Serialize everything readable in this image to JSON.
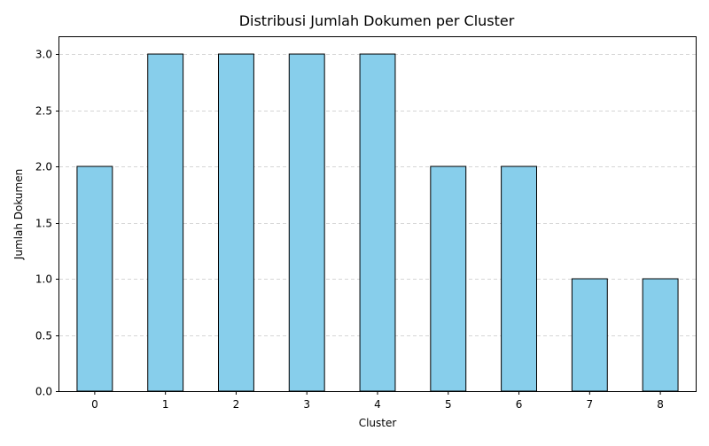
{
  "chart_data": {
    "type": "bar",
    "title": "Distribusi Jumlah Dokumen per Cluster",
    "xlabel": "Cluster",
    "ylabel": "Jumlah Dokumen",
    "categories": [
      "0",
      "1",
      "2",
      "3",
      "4",
      "5",
      "6",
      "7",
      "8"
    ],
    "values": [
      2,
      3,
      3,
      3,
      3,
      2,
      2,
      1,
      1
    ],
    "ylim": [
      0,
      3.15
    ],
    "yticks": [
      "0.0",
      "0.5",
      "1.0",
      "1.5",
      "2.0",
      "2.5",
      "3.0"
    ],
    "grid": "y-dashed",
    "legend": "none",
    "bar_color": "#87ceeb",
    "edge_color": "#000000",
    "grid_color": "#b0b0b0"
  }
}
